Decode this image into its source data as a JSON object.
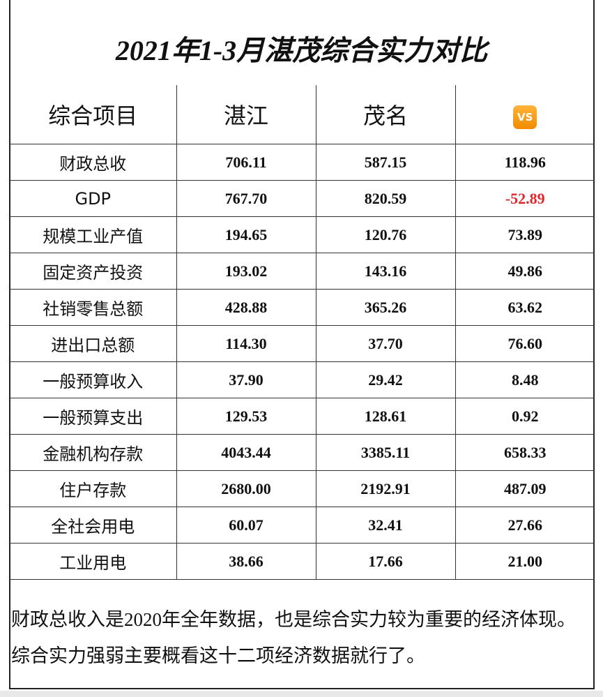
{
  "title": "2021年1-3月湛茂综合实力对比",
  "table": {
    "header": [
      "综合项目",
      "湛江",
      "茂名",
      "VS"
    ],
    "rows": [
      [
        "财政总收",
        "706.11",
        "587.15",
        "118.96"
      ],
      [
        "GDP",
        "767.70",
        "820.59",
        "-52.89"
      ],
      [
        "规模工业产值",
        "194.65",
        "120.76",
        "73.89"
      ],
      [
        "固定资产投资",
        "193.02",
        "143.16",
        "49.86"
      ],
      [
        "社销零售总额",
        "428.88",
        "365.26",
        "63.62"
      ],
      [
        "进出口总额",
        "114.30",
        "37.70",
        "76.60"
      ],
      [
        "一般预算收入",
        "37.90",
        "29.42",
        "8.48"
      ],
      [
        "一般预算支出",
        "129.53",
        "128.61",
        "0.92"
      ],
      [
        "金融机构存款",
        "4043.44",
        "3385.11",
        "658.33"
      ],
      [
        "住户存款",
        "2680.00",
        "2192.91",
        "487.09"
      ],
      [
        "全社会用电",
        "60.07",
        "32.41",
        "27.66"
      ],
      [
        "工业用电",
        "38.66",
        "17.66",
        "21.00"
      ]
    ],
    "negative_color": "#e0262a"
  },
  "note": "财政总收入是2020年全年数据，也是综合实力较为重要的经济体现。综合实力强弱主要概看这十二项经济数据就行了。"
}
